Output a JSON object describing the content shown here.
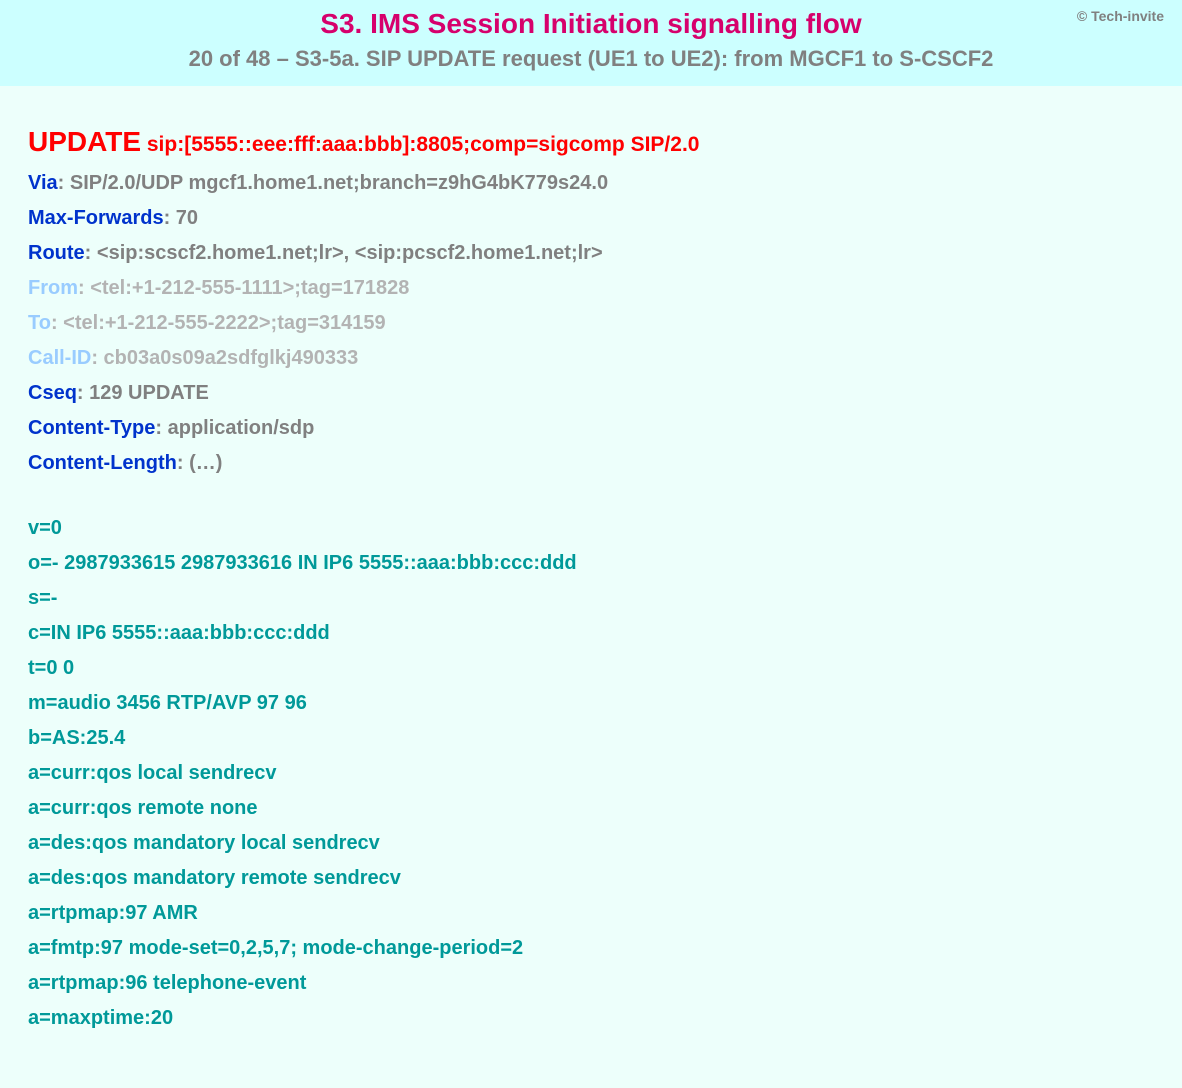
{
  "copyright": "© Tech-invite",
  "title": "S3. IMS Session Initiation signalling flow",
  "subtitle": "20 of 48 – S3-5a. SIP UPDATE request (UE1 to UE2): from MGCF1 to S-CSCF2",
  "colors": {
    "header_bg": "#ccffff",
    "body_bg": "#edfffb",
    "title": "#d6006c",
    "subtitle_gray": "#808080",
    "red": "#ff0000",
    "blue": "#0033cc",
    "light_blue": "#99ccff",
    "gray": "#808080",
    "light_gray": "#b3b3b3",
    "teal": "#009999"
  },
  "request": {
    "method": "UPDATE",
    "uri": " sip:[5555::eee:fff:aaa:bbb]:8805;comp=sigcomp SIP/2.0"
  },
  "headers": [
    {
      "name": "Via",
      "value": ": SIP/2.0/UDP mgcf1.home1.net;branch=z9hG4bK779s24.0",
      "style": "normal"
    },
    {
      "name": "Max-Forwards",
      "value": ": 70",
      "style": "normal"
    },
    {
      "name": "Route",
      "value": ": <sip:scscf2.home1.net;lr>, <sip:pcscf2.home1.net;lr>",
      "style": "normal"
    },
    {
      "name": "From",
      "value": ": <tel:+1-212-555-1111>;tag=171828",
      "style": "light"
    },
    {
      "name": "To",
      "value": ": <tel:+1-212-555-2222>;tag=314159",
      "style": "light"
    },
    {
      "name": "Call-ID",
      "value": ": cb03a0s09a2sdfglkj490333",
      "style": "light"
    },
    {
      "name": "Cseq",
      "value": ": 129 UPDATE",
      "style": "normal"
    },
    {
      "name": "Content-Type",
      "value": ": application/sdp",
      "style": "normal"
    },
    {
      "name": "Content-Length",
      "value": ": (…)",
      "style": "normal"
    }
  ],
  "sdp": [
    "v=0",
    "o=- 2987933615 2987933616 IN IP6 5555::aaa:bbb:ccc:ddd",
    "s=-",
    "c=IN IP6 5555::aaa:bbb:ccc:ddd",
    "t=0 0",
    "m=audio 3456 RTP/AVP 97 96",
    "b=AS:25.4",
    "a=curr:qos local sendrecv",
    "a=curr:qos remote none",
    "a=des:qos mandatory local sendrecv",
    "a=des:qos mandatory remote sendrecv",
    "a=rtpmap:97 AMR",
    "a=fmtp:97 mode-set=0,2,5,7; mode-change-period=2",
    "a=rtpmap:96 telephone-event",
    "a=maxptime:20"
  ]
}
